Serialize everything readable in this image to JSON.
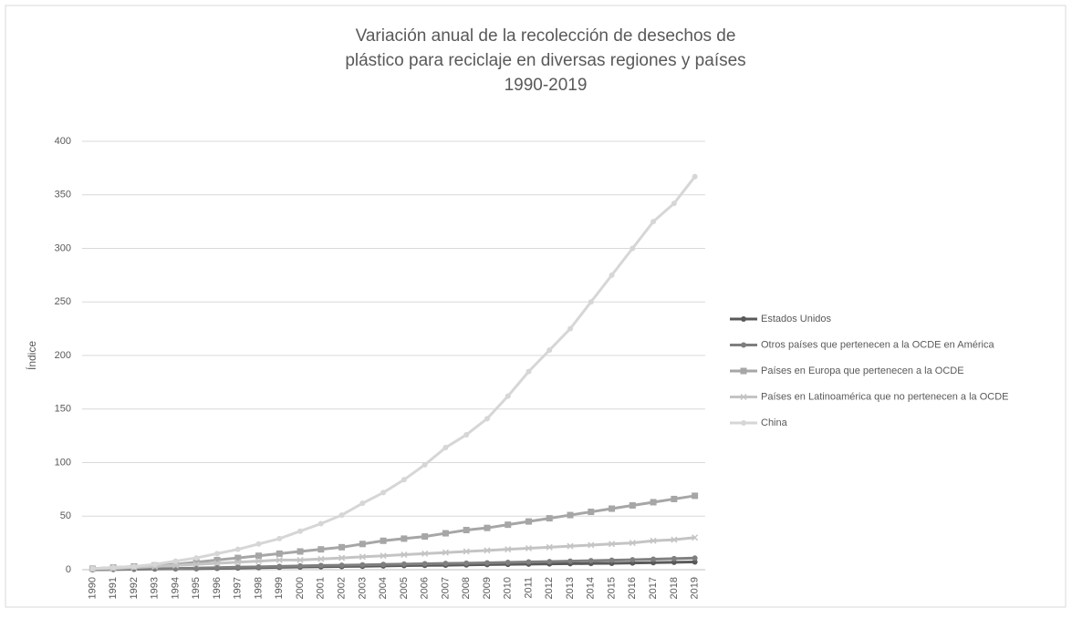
{
  "chart_data": {
    "type": "line",
    "title": [
      "Variación anual de la recolección de desechos de",
      "plástico para reciclaje en diversas regiones y países",
      "1990-2019"
    ],
    "y_label": "Índice",
    "categories": [
      "1990",
      "1991",
      "1992",
      "1993",
      "1994",
      "1995",
      "1996",
      "1997",
      "1998",
      "1999",
      "2000",
      "2001",
      "2002",
      "2003",
      "2004",
      "2005",
      "2006",
      "2007",
      "2008",
      "2009",
      "2010",
      "2011",
      "2012",
      "2013",
      "2014",
      "2015",
      "2016",
      "2017",
      "2018",
      "2019"
    ],
    "ylim": [
      0,
      400
    ],
    "yticks": [
      0,
      50,
      100,
      150,
      200,
      250,
      300,
      350,
      400
    ],
    "grid": true,
    "legend": "right",
    "series": [
      {
        "name": "Estados Unidos",
        "color": "#595959",
        "marker": "circle",
        "values": [
          0,
          0.2,
          0.4,
          0.6,
          0.8,
          1,
          1.3,
          1.6,
          1.9,
          2.2,
          2.5,
          2.8,
          3,
          3.2,
          3.5,
          3.8,
          4,
          4.2,
          4.5,
          4.8,
          5,
          5.2,
          5.4,
          5.6,
          5.8,
          6,
          6.3,
          6.6,
          6.9,
          7.2
        ]
      },
      {
        "name": "Otros países que pertenecen a la OCDE en América",
        "color": "#7f7f7f",
        "marker": "circle",
        "values": [
          0,
          0.3,
          0.6,
          0.9,
          1.2,
          1.5,
          1.9,
          2.3,
          2.7,
          3.1,
          3.5,
          3.9,
          4.2,
          4.5,
          4.9,
          5.2,
          5.5,
          5.8,
          6.1,
          6.4,
          6.8,
          7.2,
          7.6,
          8,
          8.4,
          8.8,
          9.3,
          9.8,
          10.3,
          10.8
        ]
      },
      {
        "name": "Países en Europa que pertenecen a la OCDE",
        "color": "#a6a6a6",
        "marker": "square",
        "values": [
          1,
          2,
          3,
          4,
          5,
          7,
          9,
          11,
          13,
          15,
          17,
          19,
          21,
          24,
          27,
          29,
          31,
          34,
          37,
          39,
          42,
          45,
          48,
          51,
          54,
          57,
          60,
          63,
          66,
          69
        ]
      },
      {
        "name": "Países en Latinoamérica que no pertenecen a la OCDE",
        "color": "#c4c4c4",
        "marker": "cross",
        "values": [
          1,
          1,
          2,
          3,
          4,
          5,
          6,
          7,
          8,
          9,
          9,
          10,
          11,
          12,
          13,
          14,
          15,
          16,
          17,
          18,
          19,
          20,
          21,
          22,
          23,
          24,
          25,
          27,
          28,
          30
        ]
      },
      {
        "name": "China",
        "color": "#d6d6d6",
        "marker": "circle",
        "values": [
          1,
          2,
          3,
          5,
          8,
          11,
          15,
          19,
          24,
          29,
          36,
          43,
          51,
          62,
          72,
          84,
          98,
          114,
          126,
          141,
          162,
          185,
          205,
          225,
          250,
          275,
          300,
          325,
          342,
          367
        ]
      }
    ]
  }
}
